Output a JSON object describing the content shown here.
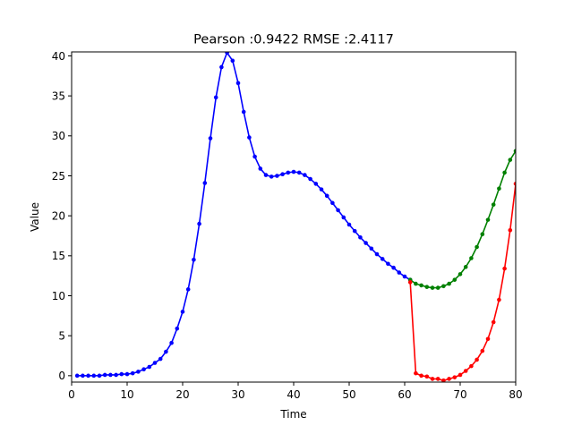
{
  "chart_data": {
    "type": "line",
    "title": "Pearson :0.9422  RMSE :2.4117",
    "xlabel": "Time",
    "ylabel": "Value",
    "xlim": [
      0,
      80
    ],
    "ylim": [
      -0.8,
      40.5
    ],
    "x_ticks": [
      0,
      10,
      20,
      30,
      40,
      50,
      60,
      70,
      80
    ],
    "y_ticks": [
      0,
      5,
      10,
      15,
      20,
      25,
      30,
      35,
      40
    ],
    "grid": false,
    "legend": "none",
    "series": [
      {
        "color": "#0000ff",
        "x": [
          1,
          2,
          3,
          4,
          5,
          6,
          7,
          8,
          9,
          10,
          11,
          12,
          13,
          14,
          15,
          16,
          17,
          18,
          19,
          20,
          21,
          22,
          23,
          24,
          25,
          26,
          27,
          28,
          29,
          30,
          31,
          32,
          33,
          34,
          35,
          36,
          37,
          38,
          39,
          40,
          41,
          42,
          43,
          44,
          45,
          46,
          47,
          48,
          49,
          50,
          51,
          52,
          53,
          54,
          55,
          56,
          57,
          58,
          59,
          60,
          61
        ],
        "y": [
          0,
          0,
          0,
          0,
          0,
          0.1,
          0.1,
          0.1,
          0.2,
          0.2,
          0.3,
          0.5,
          0.8,
          1.1,
          1.6,
          2.1,
          3,
          4.1,
          5.9,
          8,
          10.8,
          14.5,
          19,
          24.1,
          29.7,
          34.8,
          38.6,
          40.4,
          39.4,
          36.6,
          33,
          29.8,
          27.4,
          25.9,
          25.1,
          24.9,
          25,
          25.2,
          25.4,
          25.5,
          25.4,
          25.1,
          24.6,
          24,
          23.3,
          22.5,
          21.6,
          20.7,
          19.8,
          18.9,
          18.1,
          17.3,
          16.6,
          15.9,
          15.2,
          14.6,
          14,
          13.5,
          12.9,
          12.4,
          12
        ]
      },
      {
        "color": "#008000",
        "x": [
          61,
          62,
          63,
          64,
          65,
          66,
          67,
          68,
          69,
          70,
          71,
          72,
          73,
          74,
          75,
          76,
          77,
          78,
          79,
          80
        ],
        "y": [
          12,
          11.5,
          11.3,
          11.1,
          11,
          11,
          11.2,
          11.5,
          12,
          12.7,
          13.6,
          14.7,
          16.1,
          17.7,
          19.5,
          21.4,
          23.4,
          25.4,
          27,
          28.1
        ]
      },
      {
        "color": "#ff0000",
        "x": [
          61,
          62,
          63,
          64,
          65,
          66,
          67,
          68,
          69,
          70,
          71,
          72,
          73,
          74,
          75,
          76,
          77,
          78,
          79,
          80
        ],
        "y": [
          11.7,
          0.3,
          0,
          -0.1,
          -0.4,
          -0.4,
          -0.6,
          -0.4,
          -0.2,
          0.1,
          0.6,
          1.2,
          2,
          3.1,
          4.6,
          6.7,
          9.5,
          13.4,
          18.2,
          24
        ]
      }
    ]
  }
}
